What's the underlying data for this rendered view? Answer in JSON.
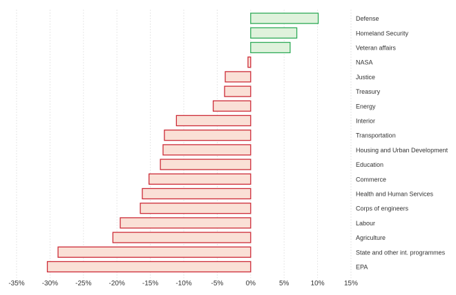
{
  "chart_data": {
    "type": "bar",
    "orientation": "horizontal",
    "categories": [
      "Defense",
      "Homeland Security",
      "Veteran affairs",
      "NASA",
      "Justice",
      "Treasury",
      "Energy",
      "Interior",
      "Transportation",
      "Housing and Urban Development",
      "Education",
      "Commerce",
      "Health and Human Services",
      "Corps of engineers",
      "Labour",
      "Agriculture",
      "State and other int. programmes",
      "EPA"
    ],
    "values": [
      10.1,
      6.9,
      5.9,
      -0.4,
      -3.8,
      -3.9,
      -5.6,
      -11.1,
      -12.9,
      -13.1,
      -13.5,
      -15.2,
      -16.2,
      -16.5,
      -19.5,
      -20.6,
      -28.8,
      -30.4
    ],
    "xlim": [
      -35,
      15
    ],
    "xticks": [
      -35,
      -30,
      -25,
      -20,
      -15,
      -10,
      -5,
      0,
      5,
      10,
      15
    ],
    "xtick_labels": [
      "-35%",
      "-30%",
      "-25%",
      "-20%",
      "-15%",
      "-10%",
      "-5%",
      "0%",
      "5%",
      "10%",
      "15%"
    ],
    "grid": "vertical-dotted",
    "title": "",
    "xlabel": "",
    "ylabel": "",
    "colors": {
      "positive_fill": "#dff2dc",
      "positive_stroke": "#2eaa57",
      "negative_fill": "#fae0d6",
      "negative_stroke": "#cc2a36"
    }
  }
}
